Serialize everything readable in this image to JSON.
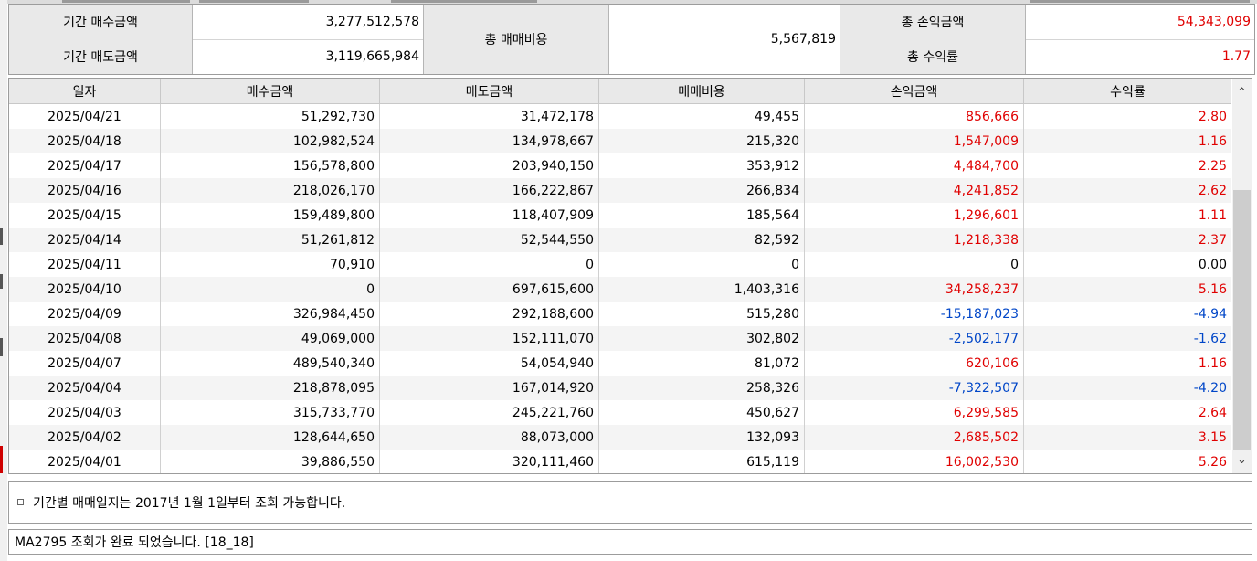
{
  "summary": {
    "buy_label": "기간 매수금액",
    "buy_value": "3,277,512,578",
    "sell_label": "기간 매도금액",
    "sell_value": "3,119,665,984",
    "fee_label": "총 매매비용",
    "fee_value": "5,567,819",
    "pnl_label": "총 손익금액",
    "pnl_value": "54,343,099",
    "rate_label": "총 수익률",
    "rate_value": "1.77"
  },
  "table": {
    "headers": [
      "일자",
      "매수금액",
      "매도금액",
      "매매비용",
      "손익금액",
      "수익률"
    ],
    "rows": [
      {
        "date": "2025/04/21",
        "buy": "51,292,730",
        "sell": "31,472,178",
        "fee": "49,455",
        "pnl": "856,666",
        "rate": "2.80",
        "sign": "pos"
      },
      {
        "date": "2025/04/18",
        "buy": "102,982,524",
        "sell": "134,978,667",
        "fee": "215,320",
        "pnl": "1,547,009",
        "rate": "1.16",
        "sign": "pos"
      },
      {
        "date": "2025/04/17",
        "buy": "156,578,800",
        "sell": "203,940,150",
        "fee": "353,912",
        "pnl": "4,484,700",
        "rate": "2.25",
        "sign": "pos"
      },
      {
        "date": "2025/04/16",
        "buy": "218,026,170",
        "sell": "166,222,867",
        "fee": "266,834",
        "pnl": "4,241,852",
        "rate": "2.62",
        "sign": "pos"
      },
      {
        "date": "2025/04/15",
        "buy": "159,489,800",
        "sell": "118,407,909",
        "fee": "185,564",
        "pnl": "1,296,601",
        "rate": "1.11",
        "sign": "pos"
      },
      {
        "date": "2025/04/14",
        "buy": "51,261,812",
        "sell": "52,544,550",
        "fee": "82,592",
        "pnl": "1,218,338",
        "rate": "2.37",
        "sign": "pos"
      },
      {
        "date": "2025/04/11",
        "buy": "70,910",
        "sell": "0",
        "fee": "0",
        "pnl": "0",
        "rate": "0.00",
        "sign": "zero"
      },
      {
        "date": "2025/04/10",
        "buy": "0",
        "sell": "697,615,600",
        "fee": "1,403,316",
        "pnl": "34,258,237",
        "rate": "5.16",
        "sign": "pos"
      },
      {
        "date": "2025/04/09",
        "buy": "326,984,450",
        "sell": "292,188,600",
        "fee": "515,280",
        "pnl": "-15,187,023",
        "rate": "-4.94",
        "sign": "neg"
      },
      {
        "date": "2025/04/08",
        "buy": "49,069,000",
        "sell": "152,111,070",
        "fee": "302,802",
        "pnl": "-2,502,177",
        "rate": "-1.62",
        "sign": "neg"
      },
      {
        "date": "2025/04/07",
        "buy": "489,540,340",
        "sell": "54,054,940",
        "fee": "81,072",
        "pnl": "620,106",
        "rate": "1.16",
        "sign": "pos"
      },
      {
        "date": "2025/04/04",
        "buy": "218,878,095",
        "sell": "167,014,920",
        "fee": "258,326",
        "pnl": "-7,322,507",
        "rate": "-4.20",
        "sign": "neg"
      },
      {
        "date": "2025/04/03",
        "buy": "315,733,770",
        "sell": "245,221,760",
        "fee": "450,627",
        "pnl": "6,299,585",
        "rate": "2.64",
        "sign": "pos"
      },
      {
        "date": "2025/04/02",
        "buy": "128,644,650",
        "sell": "88,073,000",
        "fee": "132,093",
        "pnl": "2,685,502",
        "rate": "3.15",
        "sign": "pos"
      },
      {
        "date": "2025/04/01",
        "buy": "39,886,550",
        "sell": "320,111,460",
        "fee": "615,119",
        "pnl": "16,002,530",
        "rate": "5.26",
        "sign": "pos"
      }
    ]
  },
  "scroll": {
    "up_icon": "chevron-up-icon",
    "down_icon": "chevron-down-icon",
    "up_glyph": "⌃",
    "down_glyph": "⌄"
  },
  "notice_text": "기간별 매매일지는 2017년 1월 1일부터 조회 가능합니다.",
  "status_text": "MA2795 조회가 완료 되었습니다. [18_18]",
  "colors": {
    "positive": "#e00000",
    "negative": "#0046c8",
    "header_bg": "#e9e9e9"
  }
}
